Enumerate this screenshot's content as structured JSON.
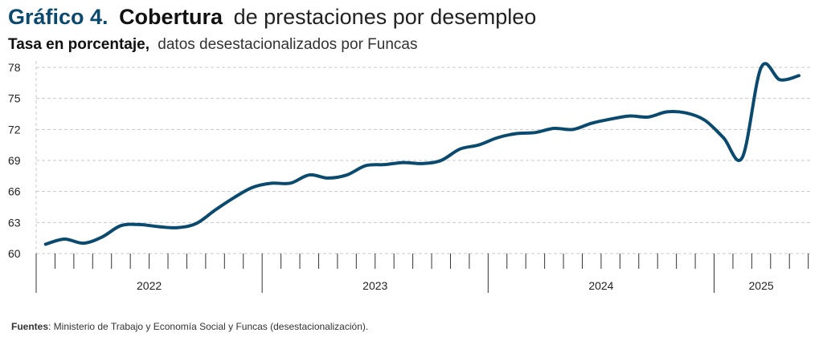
{
  "chart_data": {
    "type": "line",
    "title_parts": [
      "Gráfico 4.",
      "Cobertura",
      "de prestaciones por desempleo"
    ],
    "subtitle_parts": [
      "Tasa en porcentaje,",
      "datos desestacionalizados por Funcas"
    ],
    "source_parts": [
      "Fuentes",
      ": Ministerio de Trabajo y Economía Social y Funcas (desestacionalización)."
    ],
    "categories": [
      null,
      null,
      null,
      null,
      null,
      null,
      null,
      null,
      null,
      null,
      null,
      null,
      null,
      null,
      null,
      null,
      null,
      null,
      null,
      null,
      null,
      null,
      null,
      null,
      null,
      null,
      null,
      null,
      null,
      null,
      null,
      null,
      null,
      null,
      null,
      null,
      null,
      null,
      null,
      null,
      null
    ],
    "year_groups": [
      {
        "label": "2022",
        "months": 12
      },
      {
        "label": "2023",
        "months": 12
      },
      {
        "label": "2024",
        "months": 12
      },
      {
        "label": "2025",
        "months": 5
      }
    ],
    "series": [
      {
        "name": null,
        "color": "#0b4a6f",
        "values": [
          60.9,
          61.4,
          61.0,
          61.6,
          62.7,
          62.8,
          62.6,
          62.5,
          62.9,
          64.2,
          65.4,
          66.4,
          66.8,
          66.8,
          67.6,
          67.3,
          67.6,
          68.5,
          68.6,
          68.8,
          68.7,
          69.0,
          70.1,
          70.5,
          71.2,
          71.6,
          71.7,
          72.1,
          72.0,
          72.6,
          73.0,
          73.3,
          73.2,
          73.7,
          73.6,
          72.9,
          71.2,
          69.3,
          78.0,
          76.8,
          77.2
        ]
      }
    ],
    "ylim": [
      60,
      78
    ],
    "yticks": [
      60,
      63,
      66,
      69,
      72,
      75,
      78
    ],
    "grid": true
  }
}
